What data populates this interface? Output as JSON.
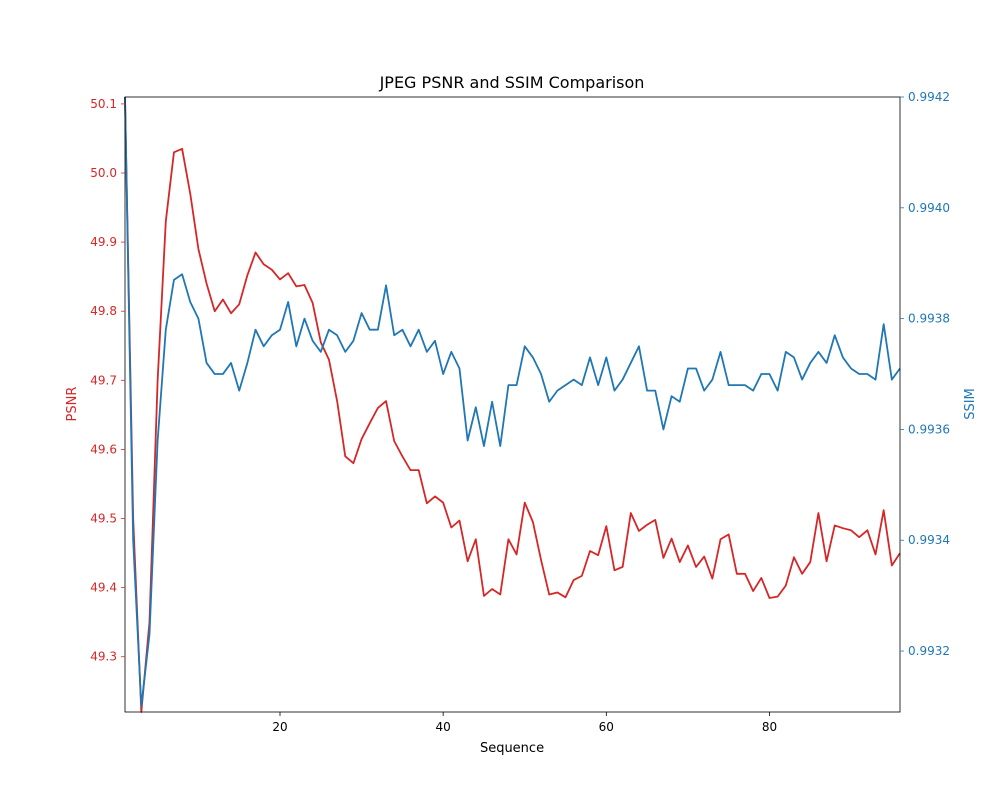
{
  "chart_data": {
    "type": "line",
    "title": "JPEG PSNR and SSIM Comparison",
    "xlabel": "Sequence",
    "ylabel_left": "PSNR",
    "ylabel_right": "SSIM",
    "xlim": [
      1,
      96
    ],
    "ylim_left": [
      49.22,
      50.11
    ],
    "ylim_right": [
      0.99309,
      0.9942
    ],
    "x_ticks": [
      20,
      40,
      60,
      80
    ],
    "y_ticks_left": [
      "49.3",
      "49.4",
      "49.5",
      "49.6",
      "49.7",
      "49.8",
      "49.9",
      "50.0",
      "50.1"
    ],
    "y_ticks_right": [
      "0.9932",
      "0.9934",
      "0.9936",
      "0.9938",
      "0.9940",
      "0.9942"
    ],
    "grid": false,
    "colors": {
      "psnr": "#d62728",
      "ssim": "#1f77b4",
      "text": "#000000"
    },
    "series": [
      {
        "axis": "left",
        "values": [
          50.11,
          49.5,
          49.22,
          49.35,
          49.7,
          49.93,
          50.03,
          50.035,
          49.97,
          49.89,
          49.84,
          49.8,
          49.817,
          49.797,
          49.81,
          49.852,
          49.885,
          49.868,
          49.86,
          49.846,
          49.855,
          49.836,
          49.838,
          49.812,
          49.755,
          49.73,
          49.67,
          49.59,
          49.58,
          49.615,
          49.638,
          49.66,
          49.67,
          49.612,
          49.59,
          49.57,
          49.57,
          49.522,
          49.532,
          49.523,
          49.487,
          49.497,
          49.438,
          49.47,
          49.388,
          49.398,
          49.39,
          49.47,
          49.448,
          49.523,
          49.495,
          49.44,
          49.39,
          49.393,
          49.386,
          49.411,
          49.417,
          49.453,
          49.447,
          49.489,
          49.425,
          49.43,
          49.508,
          49.482,
          49.491,
          49.498,
          49.443,
          49.471,
          49.437,
          49.461,
          49.43,
          49.445,
          49.413,
          49.47,
          49.477,
          49.42,
          49.42,
          49.395,
          49.414,
          49.385,
          49.387,
          49.403,
          49.444,
          49.42,
          49.437,
          49.508,
          49.438,
          49.49,
          49.486,
          49.483,
          49.473,
          49.483,
          49.448,
          49.512,
          49.432,
          49.45
        ]
      },
      {
        "axis": "right",
        "values": [
          0.9942,
          0.9934,
          0.9931,
          0.99323,
          0.99358,
          0.99378,
          0.99387,
          0.99388,
          0.99383,
          0.9938,
          0.99372,
          0.9937,
          0.9937,
          0.99372,
          0.99367,
          0.99372,
          0.99378,
          0.99375,
          0.99377,
          0.99378,
          0.99383,
          0.99375,
          0.9938,
          0.99376,
          0.99374,
          0.99378,
          0.99377,
          0.99374,
          0.99376,
          0.99381,
          0.99378,
          0.99378,
          0.99386,
          0.99377,
          0.99378,
          0.99375,
          0.99378,
          0.99374,
          0.99376,
          0.9937,
          0.99374,
          0.99371,
          0.99358,
          0.99364,
          0.99357,
          0.99365,
          0.99357,
          0.99368,
          0.99368,
          0.99375,
          0.99373,
          0.9937,
          0.99365,
          0.99367,
          0.99368,
          0.99369,
          0.99368,
          0.99373,
          0.99368,
          0.99373,
          0.99367,
          0.99369,
          0.99372,
          0.99375,
          0.99367,
          0.99367,
          0.9936,
          0.99366,
          0.99365,
          0.99371,
          0.99371,
          0.99367,
          0.99369,
          0.99374,
          0.99368,
          0.99368,
          0.99368,
          0.99367,
          0.9937,
          0.9937,
          0.99367,
          0.99374,
          0.99373,
          0.99369,
          0.99372,
          0.99374,
          0.99372,
          0.99377,
          0.99373,
          0.99371,
          0.9937,
          0.9937,
          0.99369,
          0.99379,
          0.99369,
          0.99371
        ]
      }
    ]
  }
}
